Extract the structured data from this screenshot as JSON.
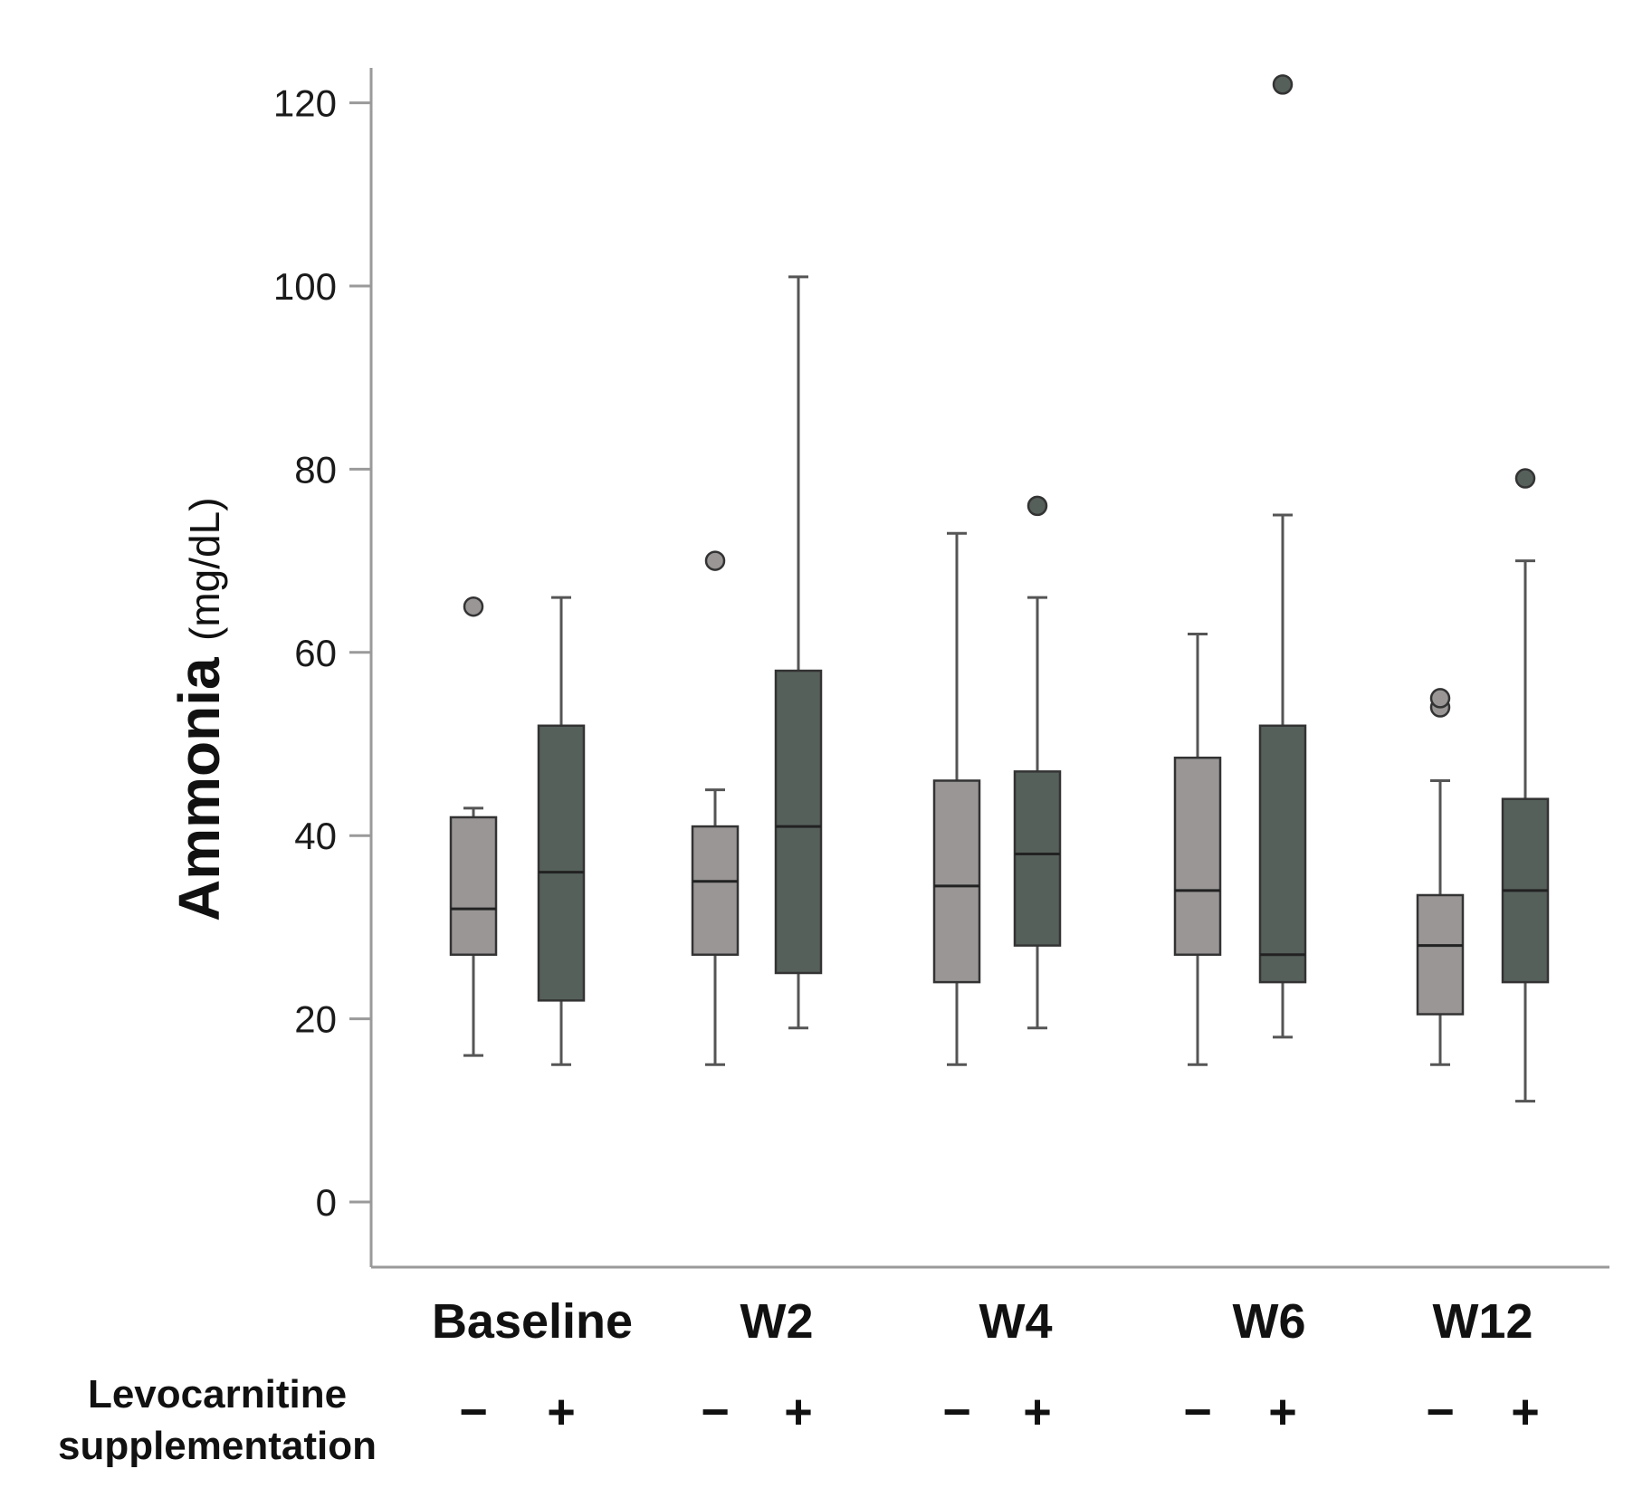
{
  "chart_data": {
    "type": "box",
    "ylabel": "Ammonia",
    "ylabel_unit": "(mg/dL)",
    "ylim": [
      -7,
      124
    ],
    "yticks": [
      0,
      20,
      40,
      60,
      80,
      100,
      120
    ],
    "ytick_labels": [
      "0",
      "20",
      "40",
      "60",
      "80",
      "100",
      "120"
    ],
    "categories": [
      "Baseline",
      "W2",
      "W4",
      "W6",
      "W12"
    ],
    "row_label": [
      "Levocarnitine",
      "supplementation"
    ],
    "series": [
      {
        "name": "Levocarnitine −",
        "sign": "−",
        "color": "#9a9696",
        "boxes": [
          {
            "min": 16,
            "q1": 27,
            "median": 32,
            "q3": 42,
            "max": 43,
            "outliers": [
              65
            ]
          },
          {
            "min": 15,
            "q1": 27,
            "median": 35,
            "q3": 41,
            "max": 45,
            "outliers": [
              70
            ]
          },
          {
            "min": 15,
            "q1": 24,
            "median": 34.5,
            "q3": 46,
            "max": 73,
            "outliers": []
          },
          {
            "min": 15,
            "q1": 27,
            "median": 34,
            "q3": 48.5,
            "max": 62,
            "outliers": []
          },
          {
            "min": 15,
            "q1": 20.5,
            "median": 28,
            "q3": 33.5,
            "max": 46,
            "outliers": [
              54,
              55
            ]
          }
        ]
      },
      {
        "name": "Levocarnitine +",
        "sign": "+",
        "color": "#56605b",
        "boxes": [
          {
            "min": 15,
            "q1": 22,
            "median": 36,
            "q3": 52,
            "max": 66,
            "outliers": []
          },
          {
            "min": 19,
            "q1": 25,
            "median": 41,
            "q3": 58,
            "max": 101,
            "outliers": []
          },
          {
            "min": 19,
            "q1": 28,
            "median": 38,
            "q3": 47,
            "max": 66,
            "outliers": [
              76
            ]
          },
          {
            "min": 18,
            "q1": 24,
            "median": 27,
            "q3": 52,
            "max": 75,
            "outliers": [
              122
            ]
          },
          {
            "min": 11,
            "q1": 24,
            "median": 34,
            "q3": 44,
            "max": 70,
            "outliers": [
              79
            ]
          }
        ]
      }
    ]
  }
}
